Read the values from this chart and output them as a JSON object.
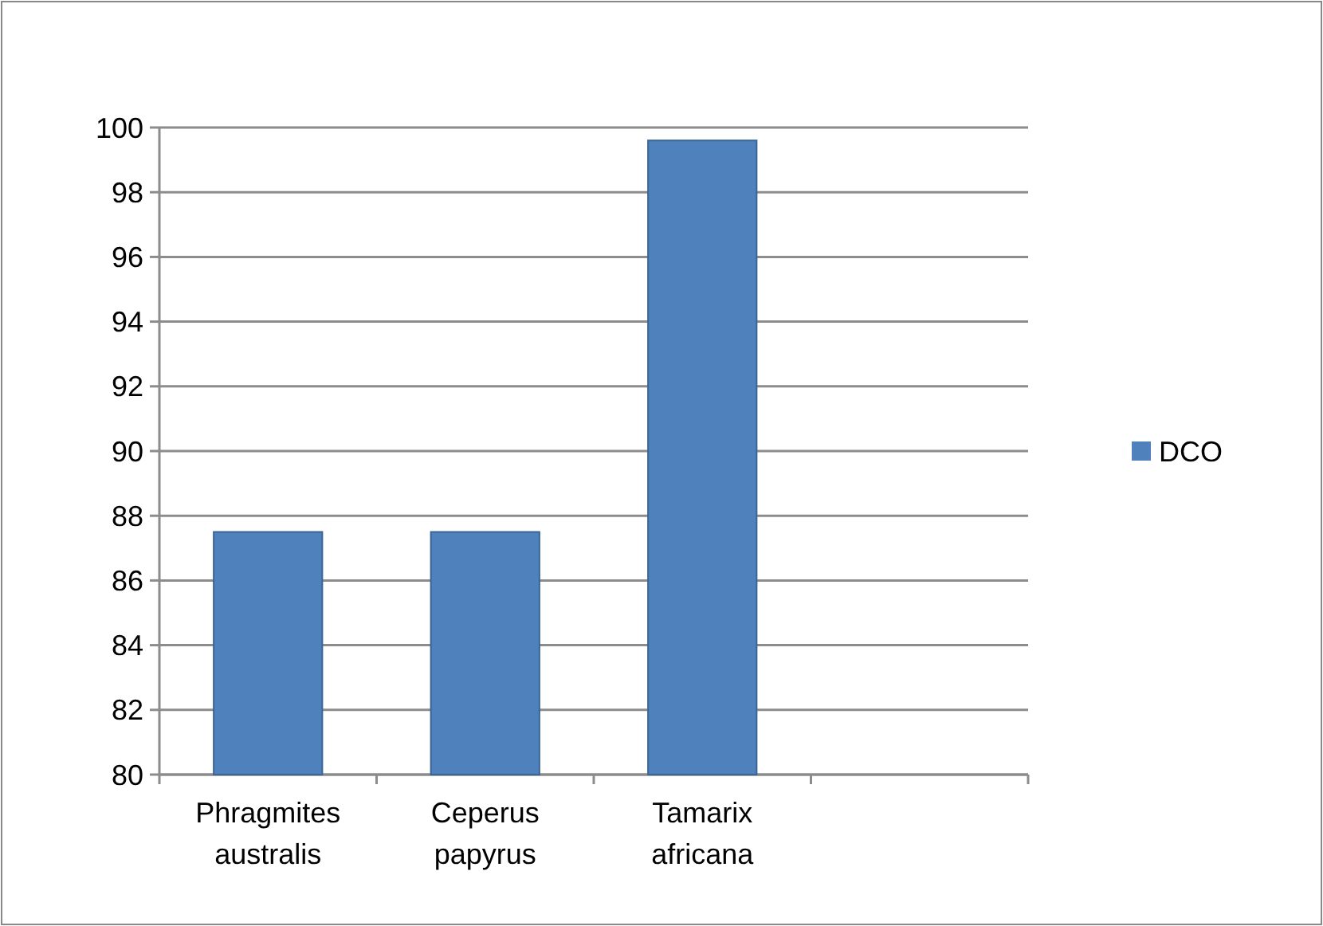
{
  "chart_data": {
    "type": "bar",
    "categories": [
      "Phragmites australis",
      "Ceperus papyrus",
      "Tamarix africana",
      null
    ],
    "series": [
      {
        "name": "DCO",
        "color": "#4f81bd",
        "values": [
          87.5,
          87.5,
          99.6,
          null
        ]
      }
    ],
    "ylim": [
      80,
      100
    ],
    "yticks": [
      80,
      82,
      84,
      86,
      88,
      90,
      92,
      94,
      96,
      98,
      100
    ],
    "grid": "y",
    "legend": "right"
  }
}
